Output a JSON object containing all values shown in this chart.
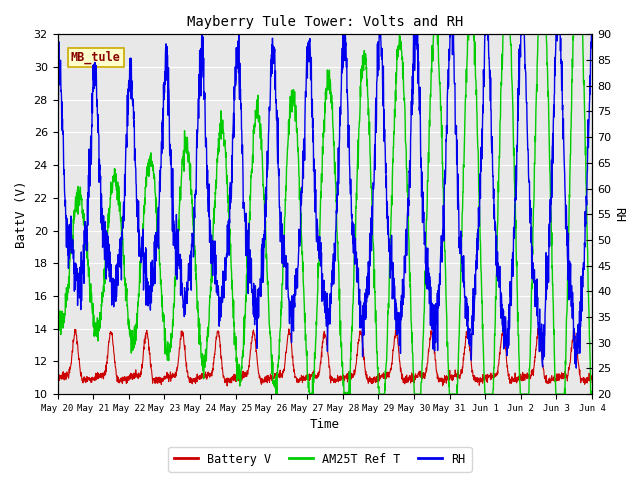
{
  "title": "Mayberry Tule Tower: Volts and RH",
  "xlabel": "Time",
  "ylabel_left": "BattV (V)",
  "ylabel_right": "RH",
  "ylim_left": [
    10,
    32
  ],
  "ylim_right": [
    20,
    90
  ],
  "yticks_left": [
    10,
    12,
    14,
    16,
    18,
    20,
    22,
    24,
    26,
    28,
    30,
    32
  ],
  "yticks_right": [
    20,
    25,
    30,
    35,
    40,
    45,
    50,
    55,
    60,
    65,
    70,
    75,
    80,
    85,
    90
  ],
  "xtick_labels": [
    "May 20",
    "May 21",
    "May 22",
    "May 23",
    "May 24",
    "May 25",
    "May 26",
    "May 27",
    "May 28",
    "May 29",
    "May 30",
    "May 31",
    "Jun 1",
    "Jun 2",
    "Jun 3",
    "Jun 4"
  ],
  "color_battery": "#cc0000",
  "color_am25t": "#00cc00",
  "color_rh": "#0000ee",
  "legend_label_battery": "Battery V",
  "legend_label_am25t": "AM25T Ref T",
  "legend_label_rh": "RH",
  "tag_label": "MB_tule",
  "tag_bg": "#ffffcc",
  "tag_border": "#ccaa00",
  "tag_text_color": "#880000",
  "plot_bg": "#e8e8e8",
  "fig_bg": "#ffffff",
  "grid_color": "#ffffff",
  "title_font": "monospace",
  "axis_font": "monospace",
  "n_days": 15,
  "n_points_per_day": 144
}
